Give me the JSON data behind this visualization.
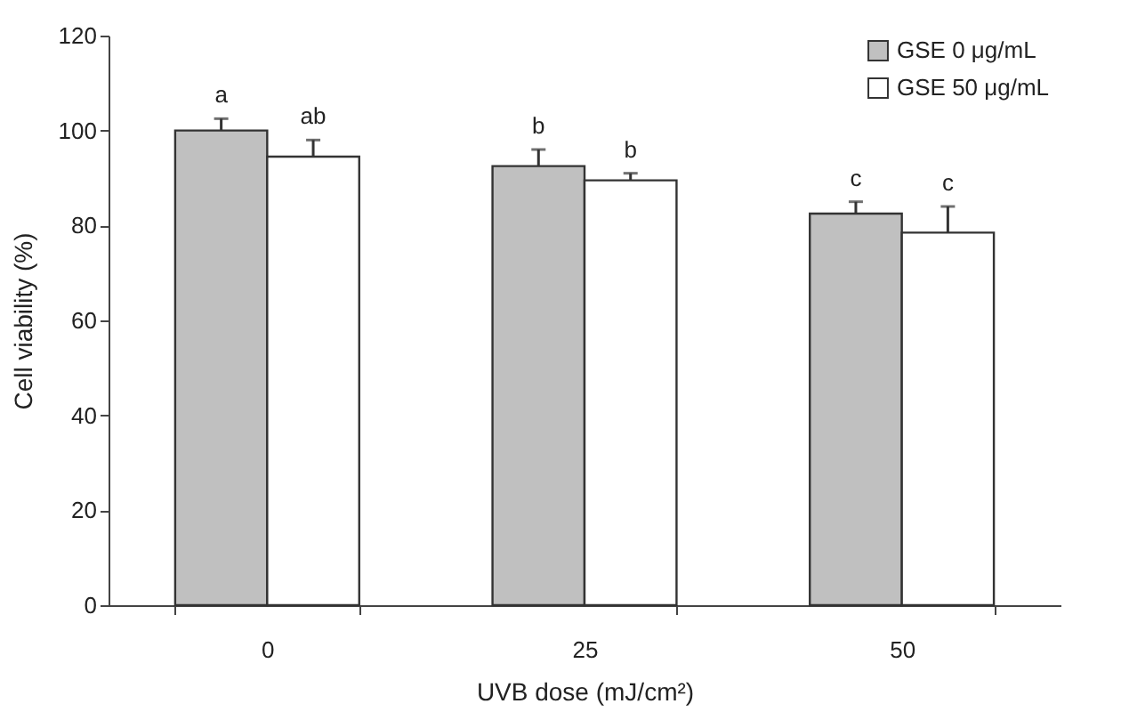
{
  "chart_data": {
    "type": "bar",
    "xlabel": "UVB dose (mJ/cm²)",
    "ylabel": "Cell viability (%)",
    "categories": [
      "0",
      "25",
      "50"
    ],
    "series": [
      {
        "name": "GSE 0  μg/mL",
        "color": "#c0c0c0",
        "values": [
          100,
          92.5,
          82.5
        ],
        "errors": [
          [
            100,
            102.5
          ],
          [
            92.5,
            96
          ],
          [
            82.5,
            85
          ]
        ]
      },
      {
        "name": "GSE 50  μg/mL",
        "color": "#ffffff",
        "values": [
          94.5,
          89.5,
          78.5
        ],
        "errors": [
          [
            94.5,
            98
          ],
          [
            89.5,
            91
          ],
          [
            78.5,
            84
          ]
        ]
      }
    ],
    "ylim": [
      0,
      120
    ],
    "yticks": [
      0,
      20,
      40,
      60,
      80,
      100,
      120
    ],
    "grid": false,
    "legend": "top right",
    "annotations": [
      "a",
      "ab",
      "b",
      "b",
      "c",
      "c"
    ]
  }
}
